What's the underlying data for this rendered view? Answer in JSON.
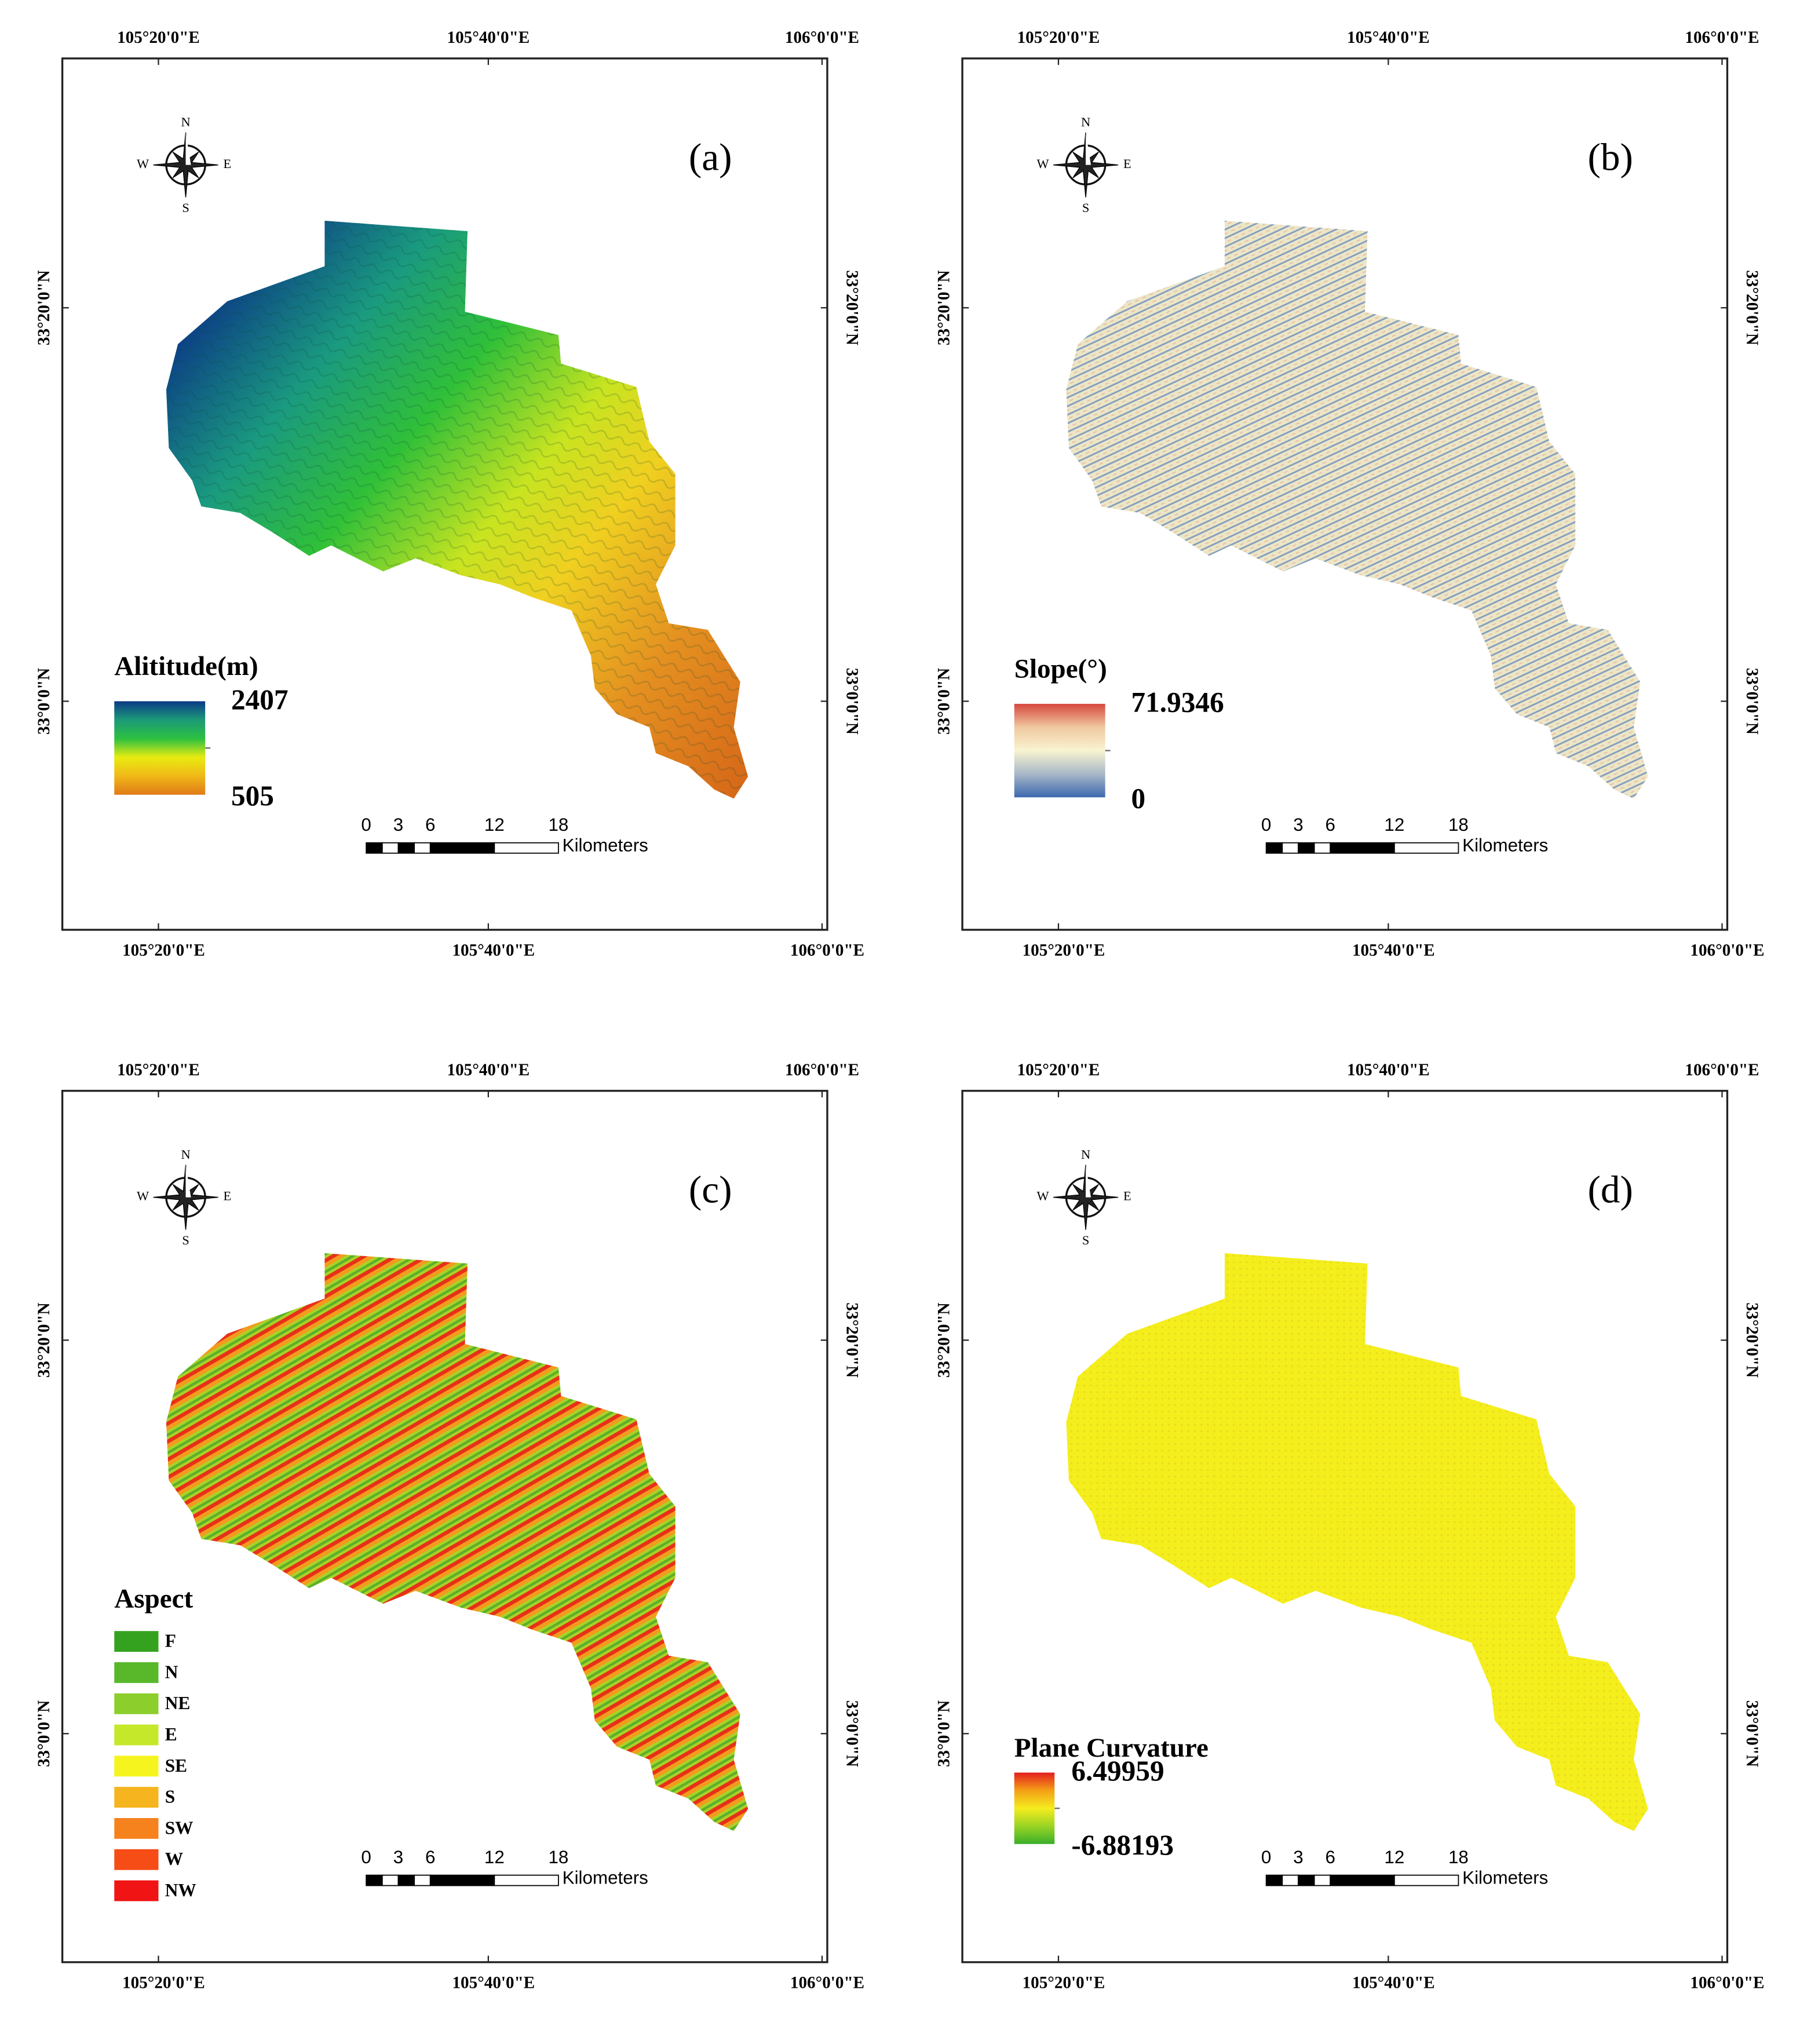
{
  "graticule": {
    "lon": [
      "105°20'0\"E",
      "105°40'0\"E",
      "106°0'0\"E"
    ],
    "lat": [
      "33°20'0\"N",
      "33°0'0\"N"
    ]
  },
  "compass": {
    "n": "N",
    "s": "S",
    "w": "W",
    "e": "E"
  },
  "scale_bar": {
    "ticks": [
      0,
      3,
      6,
      12,
      18
    ],
    "unit": "Kilometers"
  },
  "panels": [
    {
      "label": "(a)",
      "legend": {
        "title": "Alititude(m)",
        "max": 2407,
        "min": 505,
        "colors": [
          "#0b3a86",
          "#1c9a78",
          "#2cc040",
          "#e8ec10",
          "#f0b818",
          "#e07a18"
        ]
      }
    },
    {
      "label": "(b)",
      "legend": {
        "title": "Slope(°)",
        "max": 71.9346,
        "min": 0,
        "colors": [
          "#d6483e",
          "#f0c8a0",
          "#f8f4d0",
          "#a8b8c8",
          "#3c68b0"
        ]
      }
    },
    {
      "label": "(c)",
      "legend": {
        "title": "Aspect",
        "items": [
          {
            "name": "F",
            "color": "#34a21e"
          },
          {
            "name": "N",
            "color": "#58b82a"
          },
          {
            "name": "NE",
            "color": "#8cce2c"
          },
          {
            "name": "E",
            "color": "#c6e82a"
          },
          {
            "name": "SE",
            "color": "#f6f41e"
          },
          {
            "name": "S",
            "color": "#f6b41e"
          },
          {
            "name": "SW",
            "color": "#f6821e"
          },
          {
            "name": "W",
            "color": "#f64c16"
          },
          {
            "name": "NW",
            "color": "#f01414"
          }
        ]
      }
    },
    {
      "label": "(d)",
      "legend": {
        "title": "Plane Curvature",
        "max": 6.49959,
        "min": -6.88193,
        "colors": [
          "#e41e1e",
          "#f4a016",
          "#f4ec1e",
          "#9ad424",
          "#3aae2a"
        ]
      }
    }
  ]
}
